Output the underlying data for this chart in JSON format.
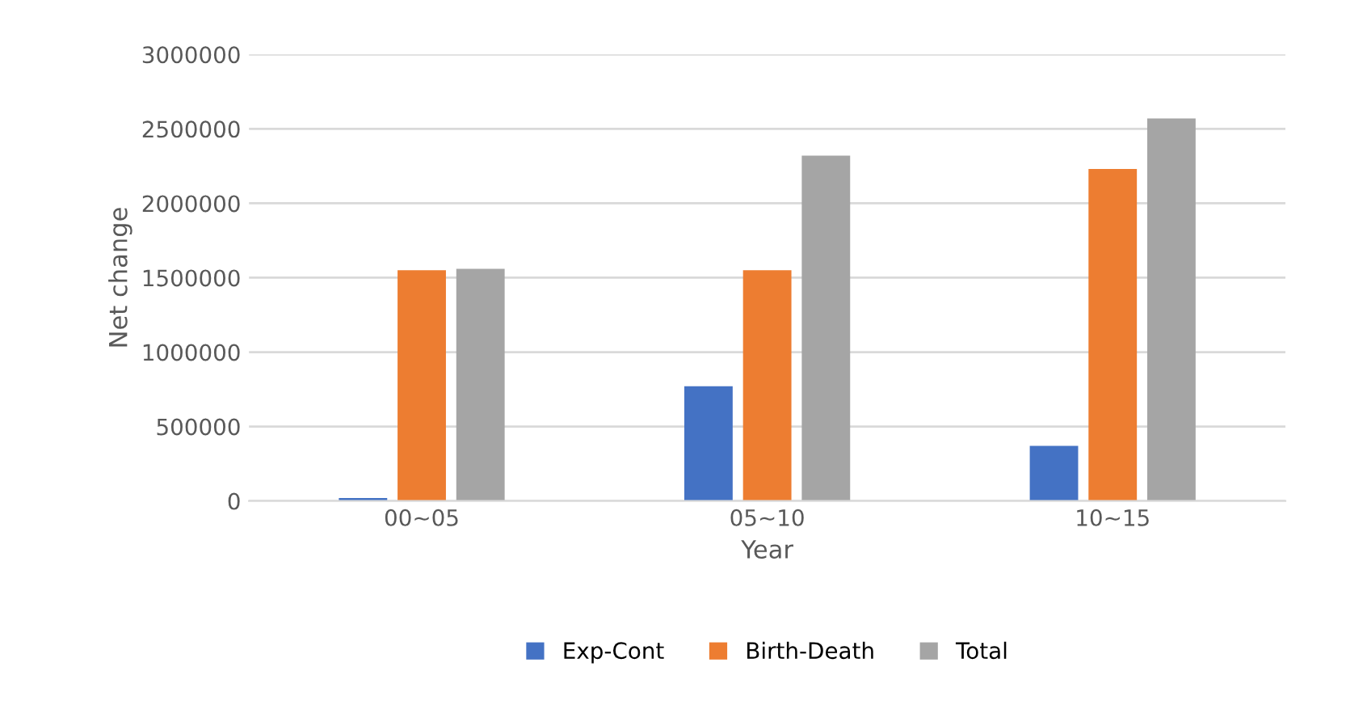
{
  "chart_data": {
    "type": "bar",
    "xlabel": "Year",
    "ylabel": "Net change",
    "categories": [
      "00~05",
      "05~10",
      "10~15"
    ],
    "series": [
      {
        "name": "Exp-Cont",
        "color": "#4472c4",
        "values": [
          20000,
          770000,
          370000
        ]
      },
      {
        "name": "Birth-Death",
        "color": "#ed7d31",
        "values": [
          1550000,
          1550000,
          2230000
        ]
      },
      {
        "name": "Total",
        "color": "#a5a5a5",
        "values": [
          1560000,
          2320000,
          2570000
        ]
      }
    ],
    "ylim": [
      0,
      3000000
    ],
    "yticks": [
      0,
      500000,
      1000000,
      1500000,
      2000000,
      2500000,
      3000000
    ],
    "grid": "y",
    "legend": "bottom"
  }
}
